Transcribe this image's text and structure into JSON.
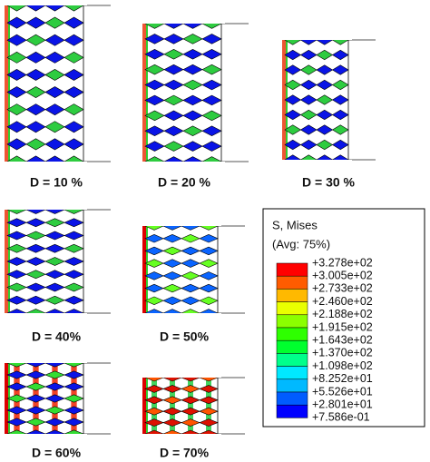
{
  "panels": [
    {
      "label": "D = 10 %"
    },
    {
      "label": "D = 20 %"
    },
    {
      "label": "D = 30 %"
    },
    {
      "label": "D = 40%"
    },
    {
      "label": "D = 50%"
    },
    {
      "label": "D = 60%"
    },
    {
      "label": "D = 70%"
    }
  ],
  "legend": {
    "title": "S, Mises",
    "subtitle": "(Avg: 75%)",
    "labels": [
      "+3.278e+02",
      "+3.005e+02",
      "+2.733e+02",
      "+2.460e+02",
      "+2.188e+02",
      "+1.915e+02",
      "+1.643e+02",
      "+1.370e+02",
      "+1.098e+02",
      "+8.252e+01",
      "+5.526e+01",
      "+2.801e+01",
      "+7.586e-01"
    ],
    "colors": [
      "#ff0000",
      "#ff5c00",
      "#ffb900",
      "#e9ff00",
      "#8bff00",
      "#2eff00",
      "#00ff2e",
      "#00ff8b",
      "#00e8ff",
      "#00b9ff",
      "#005cff",
      "#0000ff"
    ]
  }
}
